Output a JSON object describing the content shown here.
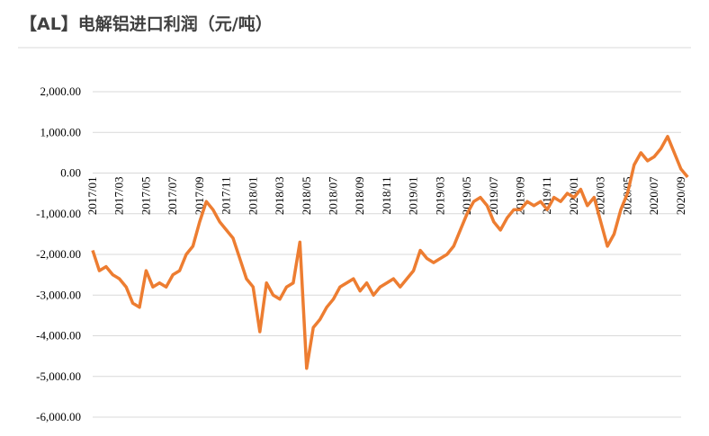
{
  "chart_data": {
    "type": "line",
    "title": "【AL】电解铝进口利润（元/吨）",
    "categories": [
      "2017/01",
      null,
      null,
      null,
      "2017/03",
      null,
      null,
      null,
      "2017/05",
      null,
      null,
      null,
      "2017/07",
      null,
      null,
      null,
      "2017/09",
      null,
      null,
      null,
      "2017/11",
      null,
      null,
      null,
      "2018/01",
      null,
      null,
      null,
      "2018/03",
      null,
      null,
      null,
      "2018/05",
      null,
      null,
      null,
      "2018/07",
      null,
      null,
      null,
      "2018/09",
      null,
      null,
      null,
      "2018/11",
      null,
      null,
      null,
      "2019/01",
      null,
      null,
      null,
      "2019/03",
      null,
      null,
      null,
      "2019/05",
      null,
      null,
      null,
      "2019/07",
      null,
      null,
      null,
      "2019/09",
      null,
      null,
      null,
      "2019/11",
      null,
      null,
      null,
      "2020/01",
      null,
      null,
      null,
      "2020/03",
      null,
      null,
      null,
      "2020/05",
      null,
      null,
      null,
      "2020/07",
      null,
      null,
      null,
      "2020/09",
      null
    ],
    "series": [
      {
        "name": "电解铝进口利润",
        "color": "#ed7d31",
        "values": [
          -1900,
          -2400,
          -2300,
          -2500,
          -2600,
          -2800,
          -3200,
          -3300,
          -2400,
          -2800,
          -2700,
          -2800,
          -2500,
          -2400,
          -2000,
          -1800,
          -1200,
          -700,
          -900,
          -1200,
          -1400,
          -1600,
          -2100,
          -2600,
          -2800,
          -3900,
          -2700,
          -3000,
          -3100,
          -2800,
          -2700,
          -1700,
          -4800,
          -3800,
          -3600,
          -3300,
          -3100,
          -2800,
          -2700,
          -2600,
          -2900,
          -2700,
          -3000,
          -2800,
          -2700,
          -2600,
          -2800,
          -2600,
          -2400,
          -1900,
          -2100,
          -2200,
          -2100,
          -2000,
          -1800,
          -1400,
          -1000,
          -700,
          -600,
          -800,
          -1200,
          -1400,
          -1100,
          -900,
          -900,
          -700,
          -800,
          -700,
          -900,
          -600,
          -700,
          -500,
          -600,
          -400,
          -800,
          -600,
          -1200,
          -1800,
          -1500,
          -900,
          -500,
          200,
          500,
          300,
          400,
          600,
          900,
          500,
          100,
          -100
        ]
      }
    ],
    "ylim": [
      -6000,
      2000
    ],
    "yticks": [
      {
        "value": -6000,
        "label": "-6,000.00"
      },
      {
        "value": -5000,
        "label": "-5,000.00"
      },
      {
        "value": -4000,
        "label": "-4,000.00"
      },
      {
        "value": -3000,
        "label": "-3,000.00"
      },
      {
        "value": -2000,
        "label": "-2,000.00"
      },
      {
        "value": -1000,
        "label": "-1,000.00"
      },
      {
        "value": 0,
        "label": "0.00"
      },
      {
        "value": 1000,
        "label": "1,000.00"
      },
      {
        "value": 2000,
        "label": "2,000.00"
      }
    ],
    "grid": true
  }
}
